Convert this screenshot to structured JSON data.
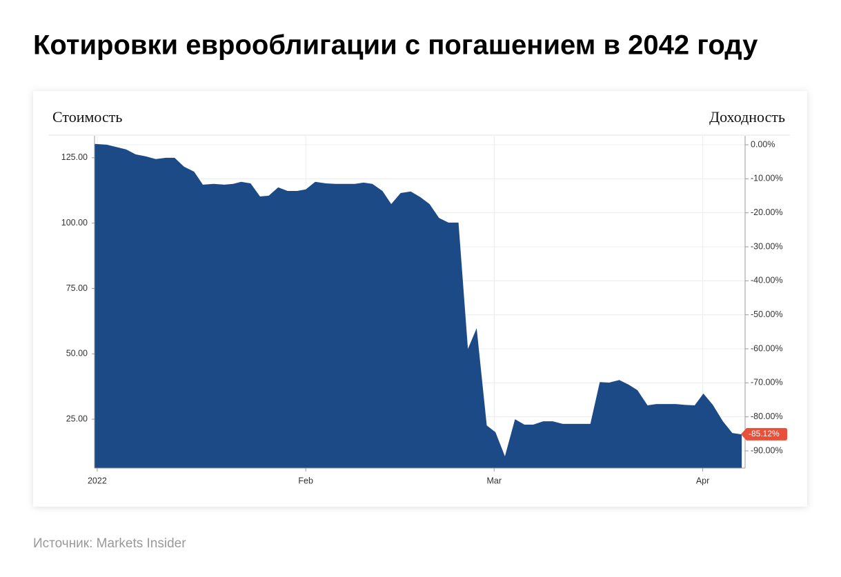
{
  "chart_data": {
    "type": "area",
    "title": "Котировки еврооблигации с погашением в 2042 году",
    "y_label": "Стоимость",
    "y2_label": "Доходность",
    "source": "Источник: Markets Insider",
    "x": [
      -0.4,
      1.4,
      3.0,
      4.3,
      5.7,
      7.3,
      8.7,
      10.2,
      11.5,
      12.9,
      14.4,
      15.7,
      17.3,
      18.9,
      20.2,
      21.4,
      22.8,
      24.2,
      25.5,
      26.9,
      28.3,
      29.7,
      31.0,
      32.4,
      34.0,
      35.4,
      36.8,
      38.3,
      39.6,
      40.9,
      42.4,
      43.7,
      45.1,
      46.6,
      48.0,
      49.4,
      50.8,
      52.2,
      53.7,
      55.1,
      56.4,
      57.9,
      59.2,
      60.6,
      62.1,
      63.5,
      64.8,
      66.3,
      67.7,
      69.2,
      70.5,
      71.9,
      73.3,
      74.7,
      76.1,
      77.6,
      79.0,
      80.3,
      81.8,
      83.1,
      84.5,
      86.0,
      87.3,
      88.8,
      90.1,
      91.5,
      93.0,
      94.4,
      95.8
    ],
    "series": [
      {
        "color": "#1c4a87",
        "values": [
          130.3,
          130,
          129,
          128.2,
          126.3,
          125.5,
          124.5,
          125,
          125,
          121.6,
          119.7,
          114.7,
          115,
          114.7,
          115,
          115.8,
          115.2,
          110.2,
          110.5,
          113.7,
          112.3,
          112.3,
          112.9,
          115.8,
          115.2,
          115,
          115,
          115,
          115.5,
          115,
          112.3,
          107.3,
          111.5,
          112.1,
          110,
          107.3,
          102,
          100.2,
          100.2,
          51.9,
          59.8,
          22.6,
          20,
          10.8,
          25,
          22.9,
          22.9,
          24.2,
          24.2,
          23.2,
          23.2,
          23.2,
          23.2,
          39.2,
          39,
          40,
          38.2,
          36.1,
          30.3,
          30.8,
          30.8,
          30.8,
          30.5,
          30.3,
          34.8,
          30.5,
          24.2,
          19.7,
          19.2
        ]
      }
    ],
    "xlim": [
      -0.4,
      96.3
    ],
    "xticks": [
      {
        "value": 0,
        "label": "2022"
      },
      {
        "value": 31,
        "label": "Feb"
      },
      {
        "value": 59,
        "label": "Mar"
      },
      {
        "value": 90,
        "label": "Apr"
      }
    ],
    "ylim": [
      6.3,
      133.4
    ],
    "yticks": [
      {
        "value": 25,
        "label": "25.00"
      },
      {
        "value": 50,
        "label": "50.00"
      },
      {
        "value": 75,
        "label": "75.00"
      },
      {
        "value": 100,
        "label": "100.00"
      },
      {
        "value": 125,
        "label": "125.00"
      }
    ],
    "y2lim": [
      -95.07,
      2.64
    ],
    "y2ticks": [
      {
        "value": 0,
        "label": "0.00%"
      },
      {
        "value": -10,
        "label": "-10.00%"
      },
      {
        "value": -20,
        "label": "-20.00%"
      },
      {
        "value": -30,
        "label": "-30.00%"
      },
      {
        "value": -40,
        "label": "-40.00%"
      },
      {
        "value": -50,
        "label": "-50.00%"
      },
      {
        "value": -60,
        "label": "-60.00%"
      },
      {
        "value": -70,
        "label": "-70.00%"
      },
      {
        "value": -80,
        "label": "-80.00%"
      },
      {
        "value": -90,
        "label": "-90.00%"
      }
    ],
    "last_yield": {
      "value": -85.12,
      "label": "-85.12%",
      "color": "#e8503a"
    },
    "grid": true
  }
}
